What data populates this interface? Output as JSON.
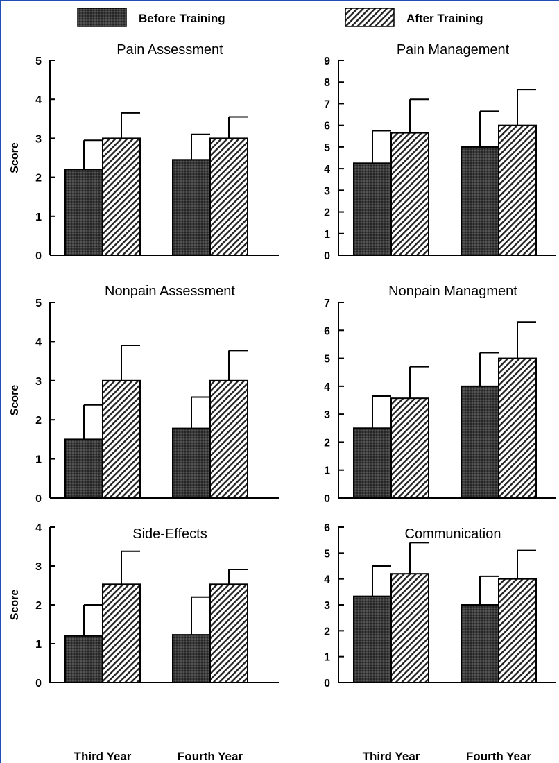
{
  "legend": {
    "before_label": "Before Training",
    "after_label": "After Training"
  },
  "colors": {
    "before_fill": "#3a3a3a",
    "after_fill": "#bdbdbd",
    "axis": "#000000"
  },
  "chart_data": [
    {
      "type": "bar",
      "title": "Pain Assessment",
      "ylabel": "Score",
      "categories": [
        "Third Year",
        "Fourth Year"
      ],
      "ylim": [
        0,
        5
      ],
      "yticks": [
        0,
        1,
        2,
        3,
        4,
        5
      ],
      "series": [
        {
          "name": "Before Training",
          "values": [
            2.2,
            2.45
          ],
          "error": [
            0.75,
            0.65
          ]
        },
        {
          "name": "After Training",
          "values": [
            3.0,
            3.0
          ],
          "error": [
            0.65,
            0.55
          ]
        }
      ]
    },
    {
      "type": "bar",
      "title": "Pain Management",
      "ylabel": "",
      "categories": [
        "Third Year",
        "Fourth Year"
      ],
      "ylim": [
        0,
        9
      ],
      "yticks": [
        0,
        1,
        2,
        3,
        4,
        5,
        6,
        7,
        8,
        9
      ],
      "series": [
        {
          "name": "Before Training",
          "values": [
            4.25,
            5.0
          ],
          "error": [
            1.5,
            1.65
          ]
        },
        {
          "name": "After Training",
          "values": [
            5.65,
            6.0
          ],
          "error": [
            1.55,
            1.65
          ]
        }
      ]
    },
    {
      "type": "bar",
      "title": "Nonpain Assessment",
      "ylabel": "Score",
      "categories": [
        "Third Year",
        "Fourth Year"
      ],
      "ylim": [
        0,
        5
      ],
      "yticks": [
        0,
        1,
        2,
        3,
        4,
        5
      ],
      "series": [
        {
          "name": "Before Training",
          "values": [
            1.5,
            1.78
          ],
          "error": [
            0.88,
            0.8
          ]
        },
        {
          "name": "After Training",
          "values": [
            3.0,
            3.0
          ],
          "error": [
            0.9,
            0.77
          ]
        }
      ]
    },
    {
      "type": "bar",
      "title": "Nonpain Managment",
      "ylabel": "",
      "categories": [
        "Third Year",
        "Fourth Year"
      ],
      "ylim": [
        0,
        7
      ],
      "yticks": [
        0,
        1,
        2,
        3,
        4,
        5,
        6,
        7
      ],
      "series": [
        {
          "name": "Before Training",
          "values": [
            2.5,
            4.0
          ],
          "error": [
            1.15,
            1.2
          ]
        },
        {
          "name": "After Training",
          "values": [
            3.57,
            5.0
          ],
          "error": [
            1.13,
            1.3
          ]
        }
      ]
    },
    {
      "type": "bar",
      "title": "Side-Effects",
      "ylabel": "Score",
      "categories": [
        "Third Year",
        "Fourth Year"
      ],
      "ylim": [
        0,
        4
      ],
      "yticks": [
        0,
        1,
        2,
        3,
        4
      ],
      "series": [
        {
          "name": "Before Training",
          "values": [
            1.2,
            1.23
          ],
          "error": [
            0.8,
            0.97
          ]
        },
        {
          "name": "After Training",
          "values": [
            2.53,
            2.53
          ],
          "error": [
            0.85,
            0.38
          ]
        }
      ]
    },
    {
      "type": "bar",
      "title": "Communication",
      "ylabel": "",
      "categories": [
        "Third Year",
        "Fourth Year"
      ],
      "ylim": [
        0,
        6
      ],
      "yticks": [
        0,
        1,
        2,
        3,
        4,
        5,
        6
      ],
      "series": [
        {
          "name": "Before Training",
          "values": [
            3.33,
            3.0
          ],
          "error": [
            1.17,
            1.1
          ]
        },
        {
          "name": "After Training",
          "values": [
            4.2,
            4.0
          ],
          "error": [
            1.2,
            1.1
          ]
        }
      ]
    }
  ]
}
